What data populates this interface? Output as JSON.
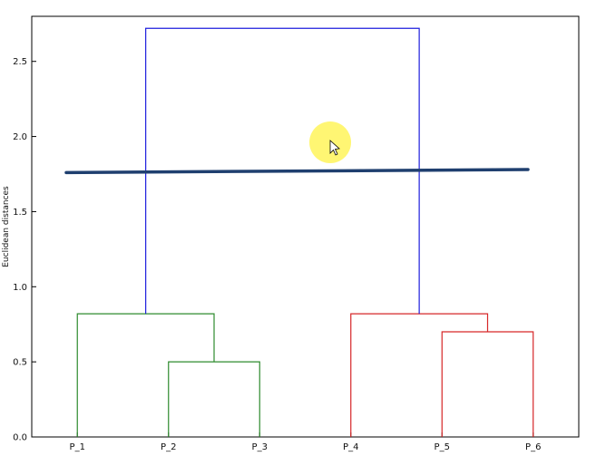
{
  "chart_data": {
    "type": "dendrogram",
    "title": "",
    "ylabel": "Euclidean distances",
    "xlabel": "",
    "ylim": [
      0,
      2.8
    ],
    "yticks": [
      "0.0",
      "0.5",
      "1.0",
      "1.5",
      "2.0",
      "2.5"
    ],
    "yticks_values": [
      0,
      0.5,
      1.0,
      1.5,
      2.0,
      2.5
    ],
    "leaves": [
      "P_1",
      "P_2",
      "P_3",
      "P_4",
      "P_5",
      "P_6"
    ],
    "links": [
      {
        "left": "P_2",
        "right": "P_3",
        "height": 0.5,
        "color": "#2e8b2e"
      },
      {
        "left": "P_1",
        "right": "P_2+P_3",
        "height": 0.82,
        "color": "#2e8b2e"
      },
      {
        "left": "P_5",
        "right": "P_6",
        "height": 0.7,
        "color": "#d62728"
      },
      {
        "left": "P_4",
        "right": "P_5+P_6",
        "height": 0.82,
        "color": "#d62728"
      },
      {
        "left": "cluster_1",
        "right": "cluster_2",
        "height": 2.72,
        "color": "#1f1fdd"
      }
    ],
    "threshold_line": {
      "y_start": 1.76,
      "y_end": 1.78,
      "color": "#1f3f6f"
    },
    "grid": false
  },
  "cursor": {
    "name": "mouse-pointer-icon",
    "highlight_color": "#fff45a"
  }
}
